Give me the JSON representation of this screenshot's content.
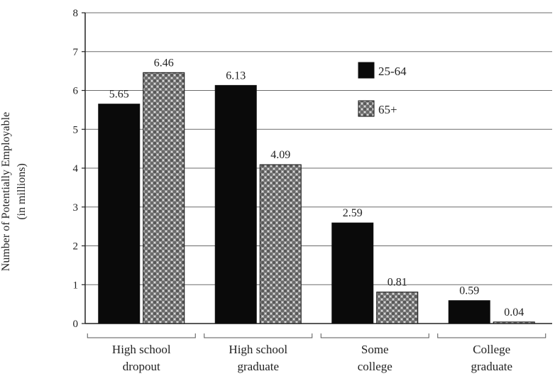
{
  "chart_data": {
    "type": "bar",
    "categories": [
      [
        "High school",
        "dropout"
      ],
      [
        "High school",
        "graduate"
      ],
      [
        "Some",
        "college"
      ],
      [
        "College",
        "graduate"
      ]
    ],
    "series": [
      {
        "name": "25-64",
        "values": [
          5.65,
          6.13,
          2.59,
          0.59
        ],
        "color": "#0a0a0a"
      },
      {
        "name": "65+",
        "values": [
          6.46,
          4.09,
          0.81,
          0.04
        ],
        "color": "#8a8a8a"
      }
    ],
    "value_labels": [
      [
        "5.65",
        "6.13",
        "2.59",
        "0.59"
      ],
      [
        "6.46",
        "4.09",
        "0.81",
        "0.04"
      ]
    ],
    "ylabel": [
      "Number of Potentially Employable",
      "(in millions)"
    ],
    "ylim": [
      0,
      8
    ],
    "yticks": [
      "0",
      "1",
      "2",
      "3",
      "4",
      "5",
      "6",
      "7",
      "8"
    ],
    "grid": "horizontal",
    "legend_position": "top-right"
  }
}
